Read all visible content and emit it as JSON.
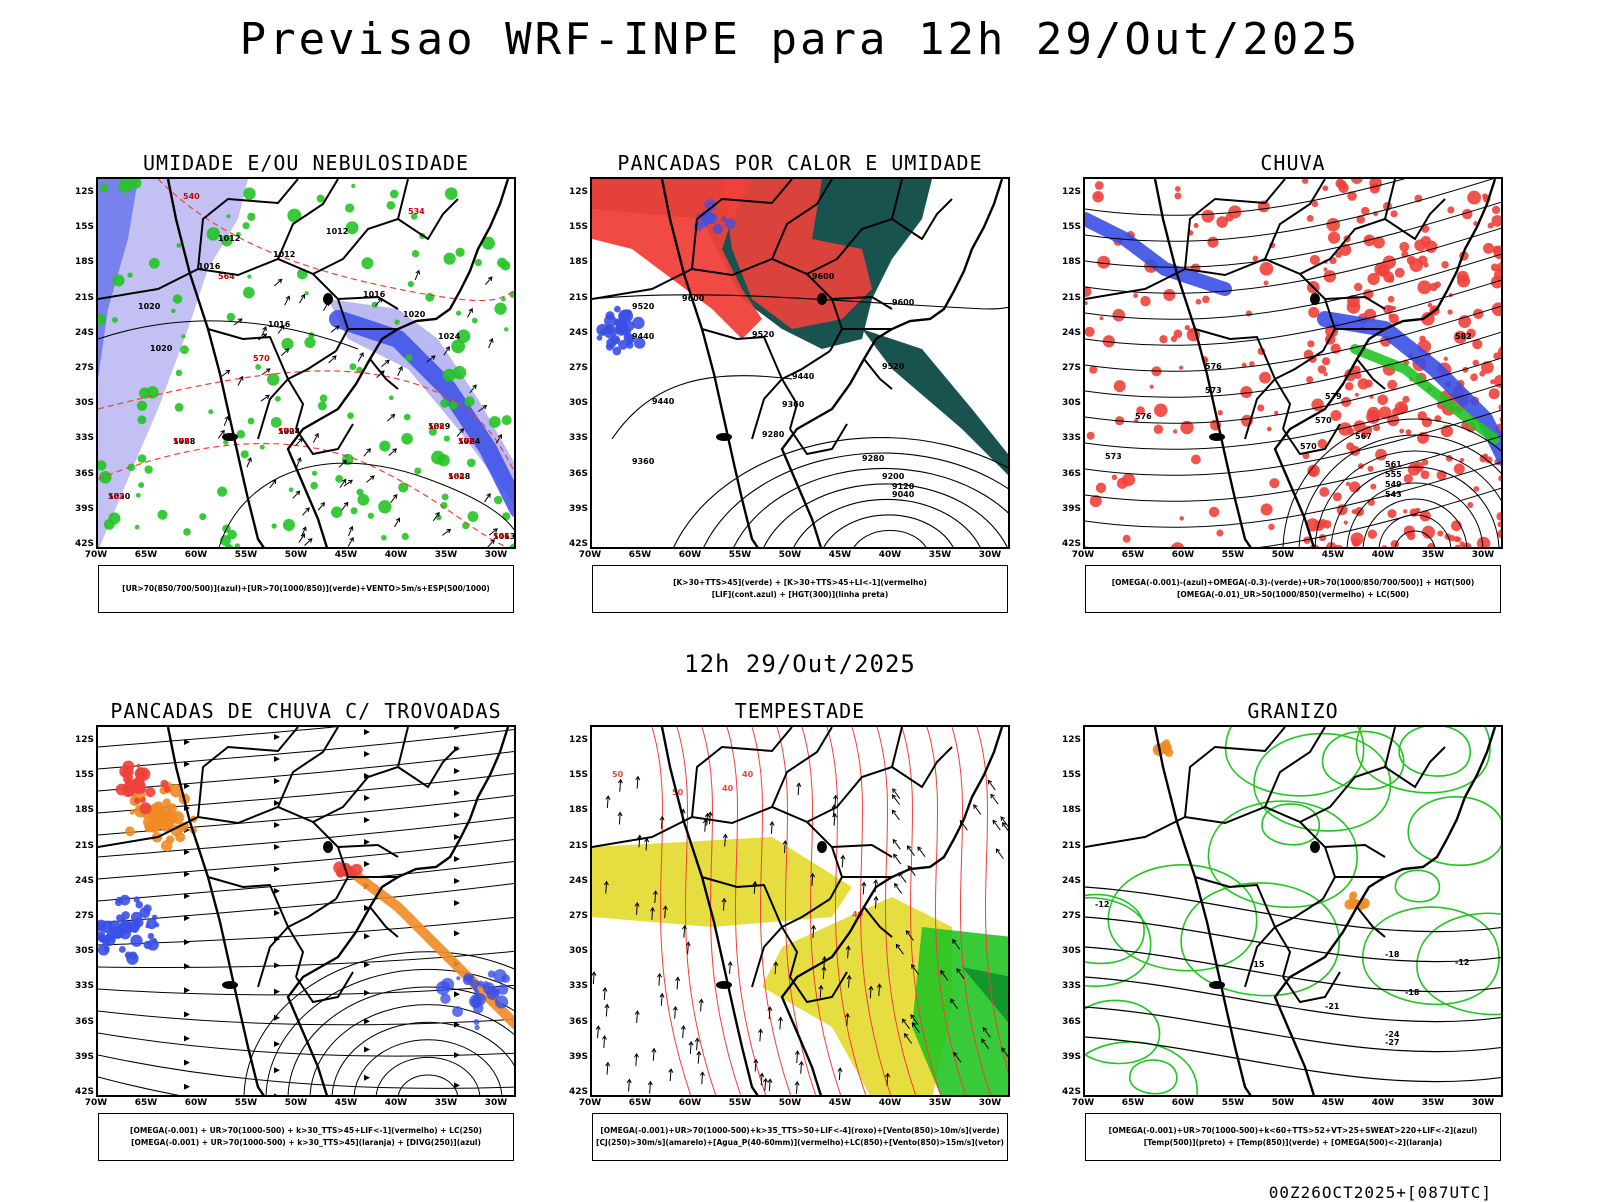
{
  "title": "Previsao WRF-INPE  para 12h 29/Out/2025",
  "mid_date": "12h 29/Out/2025",
  "run_stamp": "00Z26OCT2025+[087UTC]",
  "colors": {
    "blue": "#3a4fe6",
    "lightblue": "#a9a7ef",
    "green": "#22c422",
    "red": "#f0403a",
    "darkteal": "#0d4a47",
    "yellow": "#e3da2c",
    "orange": "#f08a24",
    "purple": "#b020d0",
    "black": "#000000"
  },
  "axes": {
    "lat_ticks": [
      "12S",
      "15S",
      "18S",
      "21S",
      "24S",
      "27S",
      "30S",
      "33S",
      "36S",
      "39S",
      "42S"
    ],
    "lon_ticks": [
      "70W",
      "65W",
      "60W",
      "55W",
      "50W",
      "45W",
      "40W",
      "35W",
      "30W"
    ],
    "lat_range": [
      -42,
      -10
    ],
    "lon_range": [
      -70,
      -28
    ]
  },
  "panels": [
    {
      "title": "UMIDADE E/OU NEBULOSIDADE",
      "caption": [
        "[UR>70(850/700/500)](azul)+[UR>70(1000/850)](verde)+VENTO>5m/s+ESP(500/1000)"
      ],
      "contour_labels": [
        "1012",
        "1012",
        "1012",
        "1016",
        "1016",
        "1016",
        "1020",
        "1020",
        "1020",
        "1024",
        "1024",
        "1024",
        "1028",
        "1028",
        "1029",
        "1030",
        "1013",
        "576",
        "570",
        "576",
        "564",
        "558",
        "552",
        "546",
        "540",
        "534",
        "564",
        "570"
      ]
    },
    {
      "title": "PANCADAS POR CALOR E UMIDADE",
      "caption": [
        "[K>30+TTS>45](verde) + [K>30+TTS>45+LI<-1](vermelho)",
        "[LIF](cont.azul) + [HGT(300)](linha preta)"
      ],
      "contour_labels": [
        "9600",
        "9600",
        "9600",
        "9520",
        "9520",
        "9520",
        "9440",
        "9440",
        "9440",
        "9360",
        "9360",
        "9280",
        "9280",
        "9200",
        "9120",
        "9040"
      ]
    },
    {
      "title": "CHUVA",
      "caption": [
        "[OMEGA(-0.001)-(azul)+OMEGA(-0.3)-(verde)+UR>70(1000/850/700/500)] + HGT(500)",
        "[OMEGA(-0.01)_UR>50(1000/850)(vermelho) + LC(500)"
      ],
      "contour_labels": [
        "582",
        "579",
        "576",
        "576",
        "573",
        "573",
        "570",
        "567",
        "570",
        "561",
        "555",
        "549",
        "543"
      ]
    },
    {
      "title": "PANCADAS DE CHUVA C/ TROVOADAS",
      "caption": [
        "[OMEGA(-0.001) + UR>70(1000-500) + k>30_TTS>45+LIF<-1](vermelho) + LC(250)",
        "[OMEGA(-0.001) + UR>70(1000-500) + k>30_TTS>45](laranja) + [DIVG(250)](azul)"
      ],
      "contour_labels": []
    },
    {
      "title": "TEMPESTADE",
      "caption": [
        "[OMEGA(-0.001)+UR>70(1000-500)+k>35_TTS>50+LIF<-4](roxo)+[Vento(850)>10m/s](verde)",
        "[CJ(250)>30m/s](amarelo)+[Agua_P(40-60mm)](vermelho)+LC(850)+[Vento(850)>15m/s](vetor)"
      ],
      "contour_labels": [
        "50",
        "40",
        "50",
        "40",
        "40"
      ]
    },
    {
      "title": "GRANIZO",
      "caption": [
        "[OMEGA(-0.001)+UR>70(1000-500)+k<60+TTS>52+VT>25+SWEAT>220+LIF<-2](azul)",
        "[Temp(500)](preto) + [Temp(850)](verde) + [OMEGA(500)<-2](laranja)"
      ],
      "contour_labels": [
        "-12",
        "-15",
        "-18",
        "-18",
        "-21",
        "-24",
        "-27",
        "-12"
      ]
    }
  ]
}
